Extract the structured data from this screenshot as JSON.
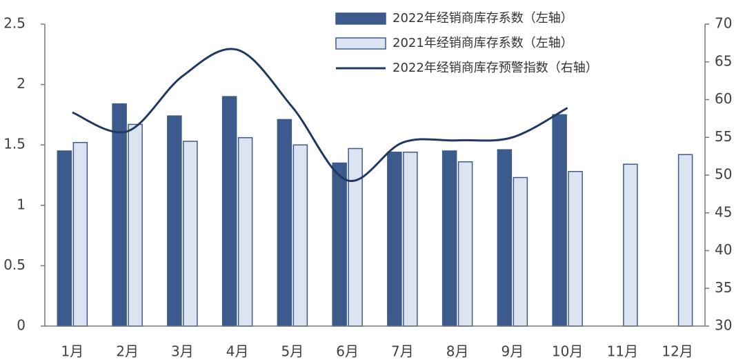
{
  "chart_data": {
    "type": "bar-line",
    "categories": [
      "1月",
      "2月",
      "3月",
      "4月",
      "5月",
      "6月",
      "7月",
      "8月",
      "9月",
      "10月",
      "11月",
      "12月"
    ],
    "series": [
      {
        "name": "2022年经销商库存系数（左轴）",
        "type": "bar",
        "color": "#3d5a8c",
        "values": [
          1.45,
          1.84,
          1.74,
          1.9,
          1.71,
          1.35,
          1.44,
          1.45,
          1.46,
          1.75,
          null,
          null
        ]
      },
      {
        "name": "2021年经销商库存系数（左轴）",
        "type": "bar",
        "color": "#dce4f2",
        "values": [
          1.52,
          1.67,
          1.53,
          1.56,
          1.5,
          1.47,
          1.44,
          1.36,
          1.23,
          1.28,
          1.34,
          1.42
        ]
      },
      {
        "name": "2022年经销商库存预警指数（右轴）",
        "type": "line",
        "axis": "y2",
        "color": "#1f3864",
        "values": [
          58.3,
          55.8,
          63.1,
          66.6,
          59.0,
          49.3,
          54.3,
          54.6,
          55.0,
          58.9,
          null,
          null
        ]
      }
    ],
    "ylim": [
      0,
      2.5
    ],
    "yticks": [
      0,
      0.5,
      1,
      1.5,
      2,
      2.5
    ],
    "y2lim": [
      30,
      70
    ],
    "y2ticks": [
      30,
      35,
      40,
      45,
      50,
      55,
      60,
      65,
      70
    ],
    "legend": "top"
  }
}
